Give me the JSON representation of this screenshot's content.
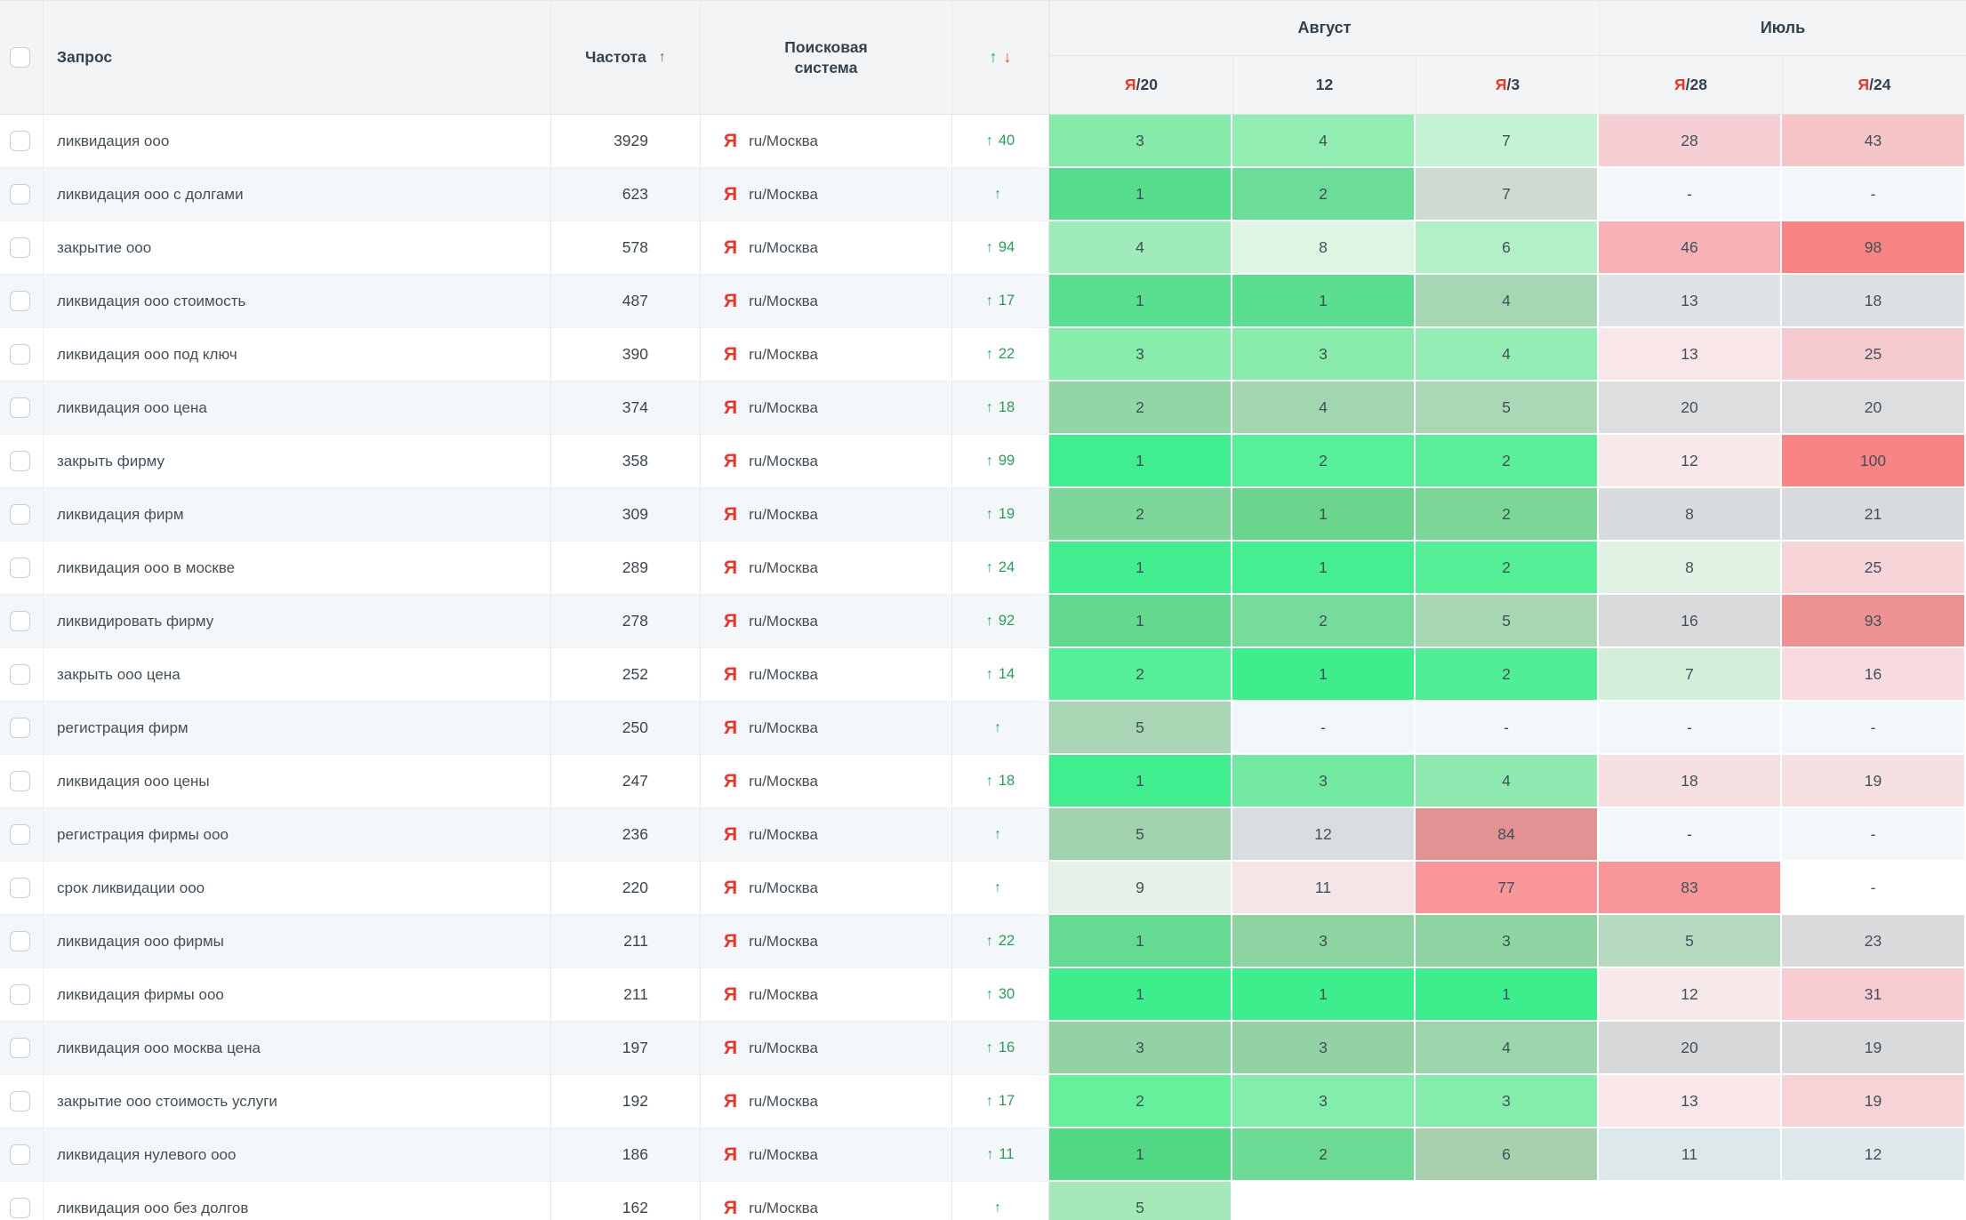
{
  "header": {
    "query_label": "Запрос",
    "frequency_label": "Частота",
    "sort_arrow": "↑",
    "search_engine_label": "Поисковая система",
    "dynamics_up": "↑",
    "dynamics_down": "↓",
    "groups": [
      {
        "label": "Август",
        "cols": [
          {
            "prefix": "Я",
            "label": "/20"
          },
          {
            "prefix": "",
            "label": "12"
          },
          {
            "prefix": "Я",
            "label": "/3"
          }
        ]
      },
      {
        "label": "Июль",
        "cols": [
          {
            "prefix": "Я",
            "label": "/28"
          },
          {
            "prefix": "Я",
            "label": "/24"
          }
        ]
      }
    ]
  },
  "rows": [
    {
      "query": "ликвидация ооо",
      "freq": "3929",
      "engine_icon": "Я",
      "engine_region": "ru/Москва",
      "change_arrow": "↑",
      "change": "40",
      "cells": [
        {
          "v": "3",
          "bg": "#86ebaa"
        },
        {
          "v": "4",
          "bg": "#92edb3"
        },
        {
          "v": "7",
          "bg": "#c6f2d4"
        },
        {
          "v": "28",
          "bg": "#f5cfd3"
        },
        {
          "v": "43",
          "bg": "#f5c5c8"
        }
      ]
    },
    {
      "query": "ликвидация ооо с долгами",
      "freq": "623",
      "engine_icon": "Я",
      "engine_region": "ru/Москва",
      "change_arrow": "↑",
      "change": "",
      "cells": [
        {
          "v": "1",
          "bg": "#55dc8c"
        },
        {
          "v": "2",
          "bg": "#6edc99"
        },
        {
          "v": "7",
          "bg": "#cddbd1"
        },
        {
          "v": "-",
          "bg": "#f2f7fa"
        },
        {
          "v": "-",
          "bg": "#f2f7fa"
        }
      ]
    },
    {
      "query": "закрытие ооо",
      "freq": "578",
      "engine_icon": "Я",
      "engine_region": "ru/Москва",
      "change_arrow": "↑",
      "change": "94",
      "cells": [
        {
          "v": "4",
          "bg": "#9fecba"
        },
        {
          "v": "8",
          "bg": "#def5e4"
        },
        {
          "v": "6",
          "bg": "#b2f0c8"
        },
        {
          "v": "46",
          "bg": "#f8b2b5"
        },
        {
          "v": "98",
          "bg": "#f98486"
        }
      ]
    },
    {
      "query": "ликвидация ооо стоимость",
      "freq": "487",
      "engine_icon": "Я",
      "engine_region": "ru/Москва",
      "change_arrow": "↑",
      "change": "17",
      "cells": [
        {
          "v": "1",
          "bg": "#5ade90"
        },
        {
          "v": "1",
          "bg": "#5cde91"
        },
        {
          "v": "4",
          "bg": "#a5d8b2"
        },
        {
          "v": "13",
          "bg": "#dfe3e5"
        },
        {
          "v": "18",
          "bg": "#dce0e3"
        }
      ]
    },
    {
      "query": "ликвидация ооо под ключ",
      "freq": "390",
      "engine_icon": "Я",
      "engine_region": "ru/Москва",
      "change_arrow": "↑",
      "change": "22",
      "cells": [
        {
          "v": "3",
          "bg": "#88ecac"
        },
        {
          "v": "3",
          "bg": "#8aecac"
        },
        {
          "v": "4",
          "bg": "#94edb4"
        },
        {
          "v": "13",
          "bg": "#f8e6e8"
        },
        {
          "v": "25",
          "bg": "#f6cbcf"
        }
      ]
    },
    {
      "query": "ликвидация ооо цена",
      "freq": "374",
      "engine_icon": "Я",
      "engine_region": "ru/Москва",
      "change_arrow": "↑",
      "change": "18",
      "cells": [
        {
          "v": "2",
          "bg": "#92d6a5"
        },
        {
          "v": "4",
          "bg": "#a2d6b0"
        },
        {
          "v": "5",
          "bg": "#aad8b6"
        },
        {
          "v": "20",
          "bg": "#dcdee0"
        },
        {
          "v": "20",
          "bg": "#dcdee0"
        }
      ]
    },
    {
      "query": "закрыть фирму",
      "freq": "358",
      "engine_icon": "Я",
      "engine_region": "ru/Москва",
      "change_arrow": "↑",
      "change": "99",
      "cells": [
        {
          "v": "1",
          "bg": "#3fee8e"
        },
        {
          "v": "2",
          "bg": "#58ef99"
        },
        {
          "v": "2",
          "bg": "#5bef9a"
        },
        {
          "v": "12",
          "bg": "#f8e8e9"
        },
        {
          "v": "100",
          "bg": "#f98486"
        }
      ]
    },
    {
      "query": "ликвидация фирм",
      "freq": "309",
      "engine_icon": "Я",
      "engine_region": "ru/Москва",
      "change_arrow": "↑",
      "change": "19",
      "cells": [
        {
          "v": "2",
          "bg": "#7ed79a"
        },
        {
          "v": "1",
          "bg": "#6bd58e"
        },
        {
          "v": "2",
          "bg": "#7bd798"
        },
        {
          "v": "8",
          "bg": "#d9dcde"
        },
        {
          "v": "21",
          "bg": "#d8dbdd"
        }
      ]
    },
    {
      "query": "ликвидация ооо в москве",
      "freq": "289",
      "engine_icon": "Я",
      "engine_region": "ru/Москва",
      "change_arrow": "↑",
      "change": "24",
      "cells": [
        {
          "v": "1",
          "bg": "#42ee90"
        },
        {
          "v": "1",
          "bg": "#45ee91"
        },
        {
          "v": "2",
          "bg": "#55ef97"
        },
        {
          "v": "8",
          "bg": "#e0f2e4"
        },
        {
          "v": "25",
          "bg": "#f6d4d8"
        }
      ]
    },
    {
      "query": "ликвидировать фирму",
      "freq": "278",
      "engine_icon": "Я",
      "engine_region": "ru/Москва",
      "change_arrow": "↑",
      "change": "92",
      "cells": [
        {
          "v": "1",
          "bg": "#63d990"
        },
        {
          "v": "2",
          "bg": "#77dc9b"
        },
        {
          "v": "5",
          "bg": "#a7d8b3"
        },
        {
          "v": "16",
          "bg": "#dadadc"
        },
        {
          "v": "93",
          "bg": "#ee9193"
        }
      ]
    },
    {
      "query": "закрыть ооо цена",
      "freq": "252",
      "engine_icon": "Я",
      "engine_region": "ru/Москва",
      "change_arrow": "↑",
      "change": "14",
      "cells": [
        {
          "v": "2",
          "bg": "#54ef97"
        },
        {
          "v": "1",
          "bg": "#3eee8d"
        },
        {
          "v": "2",
          "bg": "#50ef95"
        },
        {
          "v": "7",
          "bg": "#d3efda"
        },
        {
          "v": "16",
          "bg": "#f7dbde"
        }
      ]
    },
    {
      "query": "регистрация фирм",
      "freq": "250",
      "engine_icon": "Я",
      "engine_region": "ru/Москва",
      "change_arrow": "↑",
      "change": "",
      "cells": [
        {
          "v": "5",
          "bg": "#aad5b4"
        },
        {
          "v": "-",
          "bg": "#f2f7fa"
        },
        {
          "v": "-",
          "bg": "#f2f7fa"
        },
        {
          "v": "-",
          "bg": "#f2f7fa"
        },
        {
          "v": "-",
          "bg": "#f2f7fa"
        }
      ]
    },
    {
      "query": "ликвидация ооо цены",
      "freq": "247",
      "engine_icon": "Я",
      "engine_region": "ru/Москва",
      "change_arrow": "↑",
      "change": "18",
      "cells": [
        {
          "v": "1",
          "bg": "#40ee8f"
        },
        {
          "v": "3",
          "bg": "#72e8a1"
        },
        {
          "v": "4",
          "bg": "#8feab1"
        },
        {
          "v": "18",
          "bg": "#f6e0e2"
        },
        {
          "v": "19",
          "bg": "#f6e0e2"
        }
      ]
    },
    {
      "query": "регистрация фирмы ооо",
      "freq": "236",
      "engine_icon": "Я",
      "engine_region": "ru/Москва",
      "change_arrow": "↑",
      "change": "",
      "cells": [
        {
          "v": "5",
          "bg": "#a1d4ae"
        },
        {
          "v": "12",
          "bg": "#d8dedf"
        },
        {
          "v": "84",
          "bg": "#e39294"
        },
        {
          "v": "-",
          "bg": "#f2f7fa"
        },
        {
          "v": "-",
          "bg": "#f2f7fa"
        }
      ]
    },
    {
      "query": "срок ликвидации ооо",
      "freq": "220",
      "engine_icon": "Я",
      "engine_region": "ru/Москва",
      "change_arrow": "↑",
      "change": "",
      "cells": [
        {
          "v": "9",
          "bg": "#e4f1e6"
        },
        {
          "v": "11",
          "bg": "#f5e5e6"
        },
        {
          "v": "77",
          "bg": "#f89698"
        },
        {
          "v": "83",
          "bg": "#f89799"
        },
        {
          "v": "-",
          "bg": "#ffffff"
        }
      ]
    },
    {
      "query": "ликвидация ооо фирмы",
      "freq": "211",
      "engine_icon": "Я",
      "engine_region": "ru/Москва",
      "change_arrow": "↑",
      "change": "22",
      "cells": [
        {
          "v": "1",
          "bg": "#65da92"
        },
        {
          "v": "3",
          "bg": "#8ed3a2"
        },
        {
          "v": "3",
          "bg": "#8fd3a3"
        },
        {
          "v": "5",
          "bg": "#b6dabf"
        },
        {
          "v": "23",
          "bg": "#dadadc"
        }
      ]
    },
    {
      "query": "ликвидация фирмы ооо",
      "freq": "211",
      "engine_icon": "Я",
      "engine_region": "ru/Москва",
      "change_arrow": "↑",
      "change": "30",
      "cells": [
        {
          "v": "1",
          "bg": "#3cee8c"
        },
        {
          "v": "1",
          "bg": "#3cee8c"
        },
        {
          "v": "1",
          "bg": "#3dee8d"
        },
        {
          "v": "12",
          "bg": "#f7e8e9"
        },
        {
          "v": "31",
          "bg": "#f7cdd1"
        }
      ]
    },
    {
      "query": "ликвидация ооо москва цена",
      "freq": "197",
      "engine_icon": "Я",
      "engine_region": "ru/Москва",
      "change_arrow": "↑",
      "change": "16",
      "cells": [
        {
          "v": "3",
          "bg": "#93d2a4"
        },
        {
          "v": "3",
          "bg": "#92d2a4"
        },
        {
          "v": "4",
          "bg": "#9bd5ab"
        },
        {
          "v": "20",
          "bg": "#d6d8da"
        },
        {
          "v": "19",
          "bg": "#d8dadc"
        }
      ]
    },
    {
      "query": "закрытие ооо стоимость услуги",
      "freq": "192",
      "engine_icon": "Я",
      "engine_region": "ru/Москва",
      "change_arrow": "↑",
      "change": "17",
      "cells": [
        {
          "v": "2",
          "bg": "#65f09b"
        },
        {
          "v": "3",
          "bg": "#83edab"
        },
        {
          "v": "3",
          "bg": "#85edac"
        },
        {
          "v": "13",
          "bg": "#f8e6e8"
        },
        {
          "v": "19",
          "bg": "#f6d3d6"
        }
      ]
    },
    {
      "query": "ликвидация нулевого ооо",
      "freq": "186",
      "engine_icon": "Я",
      "engine_region": "ru/Москва",
      "change_arrow": "↑",
      "change": "11",
      "cells": [
        {
          "v": "1",
          "bg": "#52d785"
        },
        {
          "v": "2",
          "bg": "#6dda95"
        },
        {
          "v": "6",
          "bg": "#a8cfae"
        },
        {
          "v": "11",
          "bg": "#dce8e9"
        },
        {
          "v": "12",
          "bg": "#dde9ea"
        }
      ]
    },
    {
      "query": "ликвидация ооо без долгов",
      "freq": "162",
      "engine_icon": "Я",
      "engine_region": "ru/Москва",
      "change_arrow": "↑",
      "change": "",
      "cells": [
        {
          "v": "5",
          "bg": "#a5e9b9"
        },
        {
          "v": "",
          "bg": "#ffffff"
        },
        {
          "v": "",
          "bg": "#ffffff"
        },
        {
          "v": "",
          "bg": "#ffffff"
        },
        {
          "v": "",
          "bg": "#ffffff"
        }
      ]
    }
  ]
}
